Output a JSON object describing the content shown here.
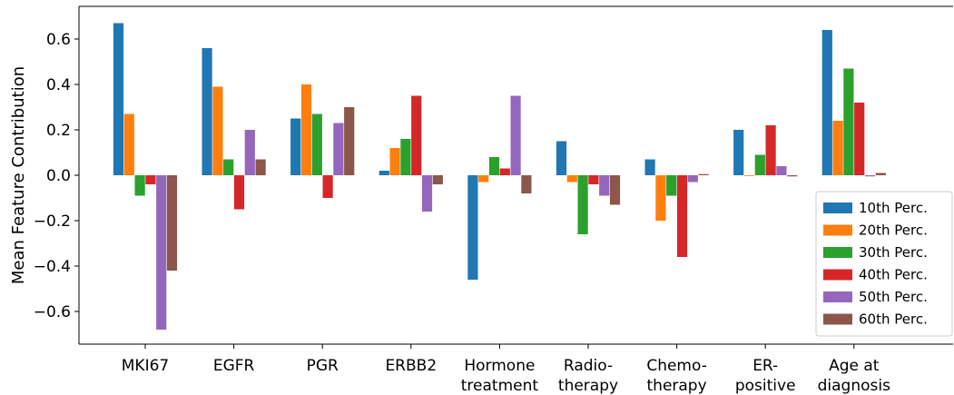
{
  "chart_data": {
    "type": "bar",
    "title": "",
    "xlabel": "",
    "ylabel": "Mean Feature Contribution",
    "ylim": [
      -0.75,
      0.75
    ],
    "yticks": [
      0.6,
      0.4,
      0.2,
      0.0,
      -0.2,
      -0.4,
      -0.6
    ],
    "ytick_labels": [
      "0.6",
      "0.4",
      "0.2",
      "0.0",
      "−0.2",
      "−0.4",
      "−0.6"
    ],
    "grid": false,
    "legend_position": "right",
    "categories": [
      [
        "MKI67"
      ],
      [
        "EGFR"
      ],
      [
        "PGR"
      ],
      [
        "ERBB2"
      ],
      [
        "Hormone",
        "treatment"
      ],
      [
        "Radio-",
        "therapy"
      ],
      [
        "Chemo-",
        "therapy"
      ],
      [
        "ER-",
        "positive"
      ],
      [
        "Age at",
        "diagnosis"
      ]
    ],
    "series": [
      {
        "name": "10th Perc.",
        "color": "#1f77b4",
        "values": [
          0.67,
          0.56,
          0.25,
          0.02,
          -0.46,
          0.15,
          0.07,
          0.2,
          0.64
        ]
      },
      {
        "name": "20th Perc.",
        "color": "#ff7f0e",
        "values": [
          0.27,
          0.39,
          0.4,
          0.12,
          -0.03,
          -0.03,
          -0.2,
          0.0,
          0.24
        ]
      },
      {
        "name": "30th Perc.",
        "color": "#2ca02c",
        "values": [
          -0.09,
          0.07,
          0.27,
          0.16,
          0.08,
          -0.26,
          -0.09,
          0.09,
          0.47
        ]
      },
      {
        "name": "40th Perc.",
        "color": "#d62728",
        "values": [
          -0.04,
          -0.15,
          -0.1,
          0.35,
          0.03,
          -0.04,
          -0.36,
          0.22,
          0.32
        ]
      },
      {
        "name": "50th Perc.",
        "color": "#9467bd",
        "values": [
          -0.68,
          0.2,
          0.23,
          -0.16,
          0.35,
          -0.09,
          -0.03,
          0.04,
          -0.005
        ]
      },
      {
        "name": "60th Perc.",
        "color": "#8c564b",
        "values": [
          -0.42,
          0.07,
          0.3,
          -0.04,
          -0.08,
          -0.13,
          0.005,
          -0.005,
          0.01
        ]
      }
    ]
  }
}
